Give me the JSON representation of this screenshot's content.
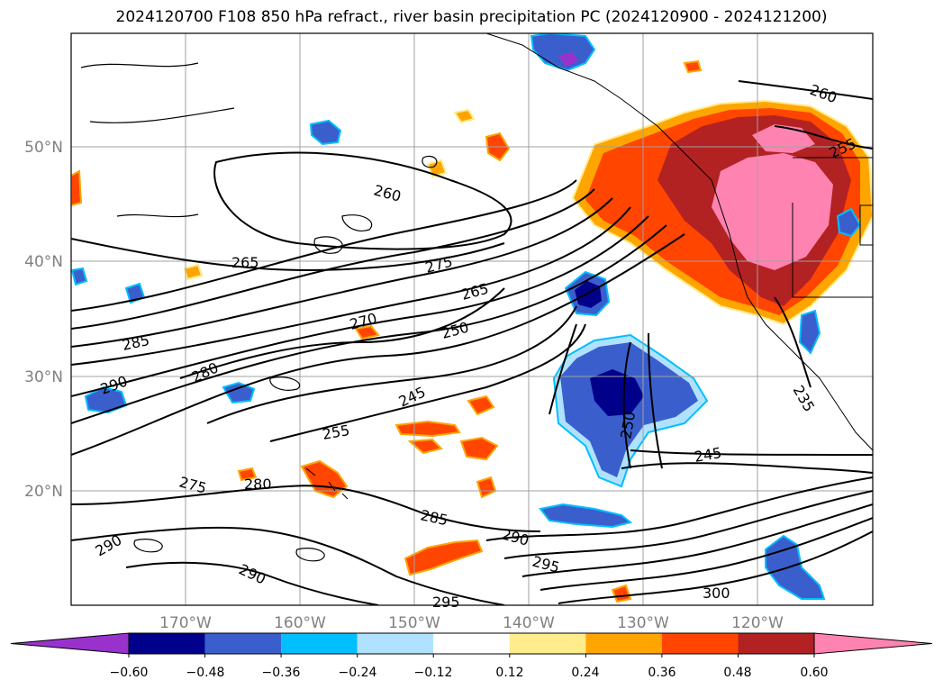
{
  "title": "2024120700 F108 850 hPa refract., river basin precipitation PC (2024120900 - 2024121200)",
  "map": {
    "lat_labels": [
      "50°N",
      "40°N",
      "30°N",
      "20°N"
    ],
    "lon_labels": [
      "170°W",
      "160°W",
      "150°W",
      "140°W",
      "130°W",
      "120°W"
    ],
    "contour_labels": [
      "260",
      "260",
      "255",
      "265",
      "275",
      "265",
      "270",
      "285",
      "250",
      "290",
      "280",
      "245",
      "235",
      "255",
      "250",
      "245",
      "275",
      "280",
      "285",
      "290",
      "295",
      "290",
      "290",
      "295",
      "300"
    ],
    "axis_label_color": "#808080"
  },
  "colorbar": {
    "tick_labels": [
      "−0.60",
      "−0.48",
      "−0.36",
      "−0.24",
      "−0.12",
      "0.12",
      "0.24",
      "0.36",
      "0.48",
      "0.60"
    ],
    "colors": [
      "#9932cc",
      "#00008b",
      "#3a5fcd",
      "#00bfff",
      "#b0e2ff",
      "#ffffff",
      "#ffec8b",
      "#ffa500",
      "#ff4500",
      "#b22222",
      "#ff83b0"
    ]
  }
}
